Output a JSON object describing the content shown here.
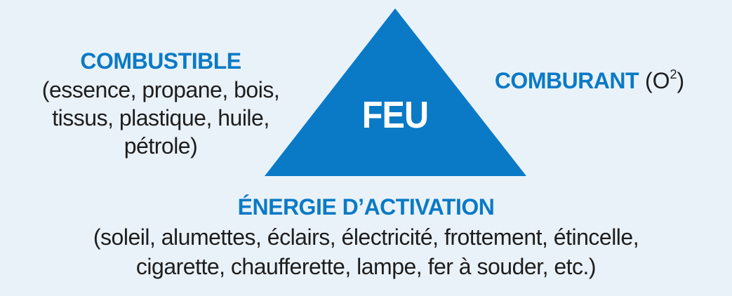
{
  "diagram": {
    "center": {
      "label": "FEU",
      "fill_color": "#0a7ac6",
      "text_color": "#ffffff"
    },
    "combustible": {
      "heading": "COMBUSTIBLE",
      "lines": [
        "(essence, propane, bois,",
        "tissus, plastique, huile,",
        "pétrole)"
      ]
    },
    "comburant": {
      "heading": "COMBURANT",
      "formula_base": "(O",
      "formula_sup": "2",
      "formula_end": ")"
    },
    "energie": {
      "heading": "ÉNERGIE D’ACTIVATION",
      "lines": [
        "(soleil, alumettes, éclairs, électricité, frottement, étincelle,",
        "cigarette, chaufferette, lampe, fer à souder, etc.)"
      ]
    },
    "colors": {
      "background": "#eaf2f9",
      "accent": "#0a7ac6",
      "text": "#1e1e1e"
    }
  }
}
